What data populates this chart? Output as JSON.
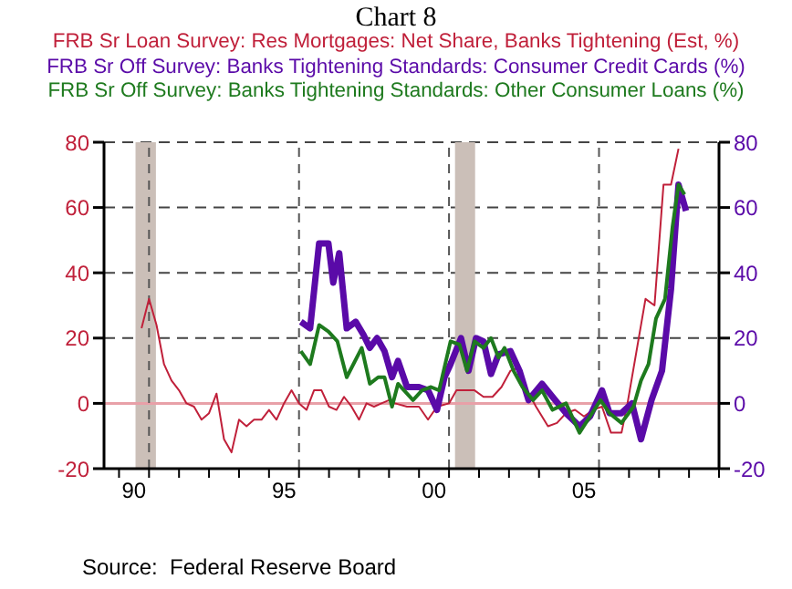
{
  "chart_data": {
    "type": "line",
    "title": "Chart 8",
    "annotations": [
      "Source:  Federal Reserve Board"
    ],
    "xlim": [
      1989,
      2009.5
    ],
    "xticks": [
      {
        "value": 1989.5,
        "label": null
      },
      {
        "value": 1990,
        "label": "90"
      },
      {
        "value": 1990.5,
        "label": null
      },
      {
        "value": 1991.5,
        "label": null
      },
      {
        "value": 1992.5,
        "label": null
      },
      {
        "value": 1993.5,
        "label": null
      },
      {
        "value": 1994.5,
        "label": null
      },
      {
        "value": 1995,
        "label": "95"
      },
      {
        "value": 1995.5,
        "label": null
      },
      {
        "value": 1996.5,
        "label": null
      },
      {
        "value": 1997.5,
        "label": null
      },
      {
        "value": 1998.5,
        "label": null
      },
      {
        "value": 1999.5,
        "label": null
      },
      {
        "value": 2000,
        "label": "00"
      },
      {
        "value": 2000.5,
        "label": null
      },
      {
        "value": 2001.5,
        "label": null
      },
      {
        "value": 2002.5,
        "label": null
      },
      {
        "value": 2003.5,
        "label": null
      },
      {
        "value": 2004.5,
        "label": null
      },
      {
        "value": 2005,
        "label": "05"
      },
      {
        "value": 2005.5,
        "label": null
      },
      {
        "value": 2006.5,
        "label": null
      },
      {
        "value": 2007.5,
        "label": null
      },
      {
        "value": 2008.5,
        "label": null
      },
      {
        "value": 2009.5,
        "label": null
      }
    ],
    "ylim": [
      -20,
      80
    ],
    "yticks": [
      -20,
      0,
      20,
      40,
      60,
      80
    ],
    "y2lim": [
      -20,
      80
    ],
    "y2ticks": [
      -20,
      0,
      20,
      40,
      60,
      80
    ],
    "grid": "y",
    "legend": "top",
    "marker": "none",
    "ref_lines": [
      {
        "axis": "y",
        "value": 0,
        "label": null,
        "color": "#e8a0a8",
        "line_style": "solid"
      },
      {
        "axis": "x",
        "value": 1990.5,
        "label": null,
        "color": "#555555",
        "line_style": "dashed"
      },
      {
        "axis": "x",
        "value": 1995.5,
        "label": null,
        "color": "#555555",
        "line_style": "dashed"
      },
      {
        "axis": "x",
        "value": 2000.5,
        "label": null,
        "color": "#555555",
        "line_style": "dashed"
      },
      {
        "axis": "x",
        "value": 2005.5,
        "label": null,
        "color": "#555555",
        "line_style": "dashed"
      }
    ],
    "bands": [
      {
        "axis": "x",
        "from": 1990.05,
        "to": 1990.73,
        "label": null,
        "color": "#cbbfb8"
      },
      {
        "axis": "x",
        "from": 2000.7,
        "to": 2001.37,
        "label": null,
        "color": "#cbbfb8"
      }
    ],
    "series": [
      {
        "name": "FRB Sr Loan Survey: Res Mortgages: Net Share, Banks Tightening (Est, %)",
        "color": "#c0203a",
        "x": [
          1990.25,
          1990.5,
          1990.75,
          1991,
          1991.25,
          1991.5,
          1991.75,
          1992,
          1992.25,
          1992.5,
          1992.75,
          1993,
          1993.25,
          1993.5,
          1993.75,
          1994,
          1994.25,
          1994.5,
          1994.75,
          1995,
          1995.25,
          1995.5,
          1995.75,
          1996,
          1996.25,
          1996.5,
          1996.75,
          1997,
          1997.25,
          1997.5,
          1997.75,
          1998,
          1998.25,
          1998.5,
          1998.7,
          1999.1,
          1999.5,
          1999.8,
          2000.1,
          2000.5,
          2000.75,
          2001.05,
          2001.35,
          2001.65,
          2001.95,
          2002.25,
          2002.55,
          2002.85,
          2003.1,
          2003.4,
          2003.8,
          2004.1,
          2004.4,
          2004.7,
          2005,
          2005.3,
          2005.6,
          2005.9,
          2006.25,
          2006.45,
          2006.75,
          2007.05,
          2007.35,
          2007.65,
          2007.9,
          2008.15
        ],
        "values": [
          23,
          32,
          24,
          12,
          7,
          4,
          0,
          -1,
          -5,
          -3,
          3,
          -11,
          -15,
          -5,
          -7,
          -5,
          -5,
          -2,
          -5,
          0,
          4,
          0,
          -2,
          4,
          4,
          -1,
          -2,
          2,
          -1,
          -5,
          0,
          -1,
          0,
          1,
          0,
          -1,
          -1,
          -5,
          -1,
          0,
          4,
          4,
          4,
          2,
          2,
          5,
          10,
          11,
          4,
          -1,
          -7,
          -6,
          -3,
          -2,
          -4,
          -2,
          -1,
          -9,
          -9,
          0,
          16,
          32,
          30,
          67,
          67,
          78
        ]
      },
      {
        "name": "FRB Sr Off Survey: Banks Tightening Standards: Consumer Credit Cards (%)",
        "color": "#5a0aa8",
        "axis": "y2",
        "x": [
          1995.56,
          1995.87,
          1996.17,
          1996.48,
          1996.64,
          1996.84,
          1997.09,
          1997.39,
          1997.65,
          1997.86,
          1998.1,
          1998.35,
          1998.6,
          1998.8,
          1999.1,
          1999.5,
          1999.8,
          2000.1,
          2000.35,
          2000.55,
          2000.9,
          2001.15,
          2001.4,
          2001.65,
          2001.9,
          2002.15,
          2002.55,
          2002.85,
          2003.15,
          2003.6,
          2003.95,
          2004.4,
          2004.85,
          2005.2,
          2005.6,
          2005.85,
          2006.25,
          2006.6,
          2006.9,
          2007.25,
          2007.6,
          2007.9,
          2008.15,
          2008.4
        ],
        "values": [
          25,
          23,
          49,
          49,
          37,
          46,
          23,
          25,
          21,
          17,
          20,
          16,
          8,
          13,
          5,
          5,
          4,
          -2,
          8,
          12,
          20,
          10,
          20,
          19,
          9,
          15,
          16,
          10,
          1,
          6,
          2,
          -3,
          -7,
          -4,
          4,
          -3,
          -3,
          0,
          -11,
          1,
          10,
          35,
          67,
          59
        ]
      },
      {
        "name": "FRB Sr Off Survey: Banks Tightening Standards: Other Consumer Loans (%)",
        "color": "#1e7a1e",
        "axis": "y2",
        "x": [
          1995.56,
          1995.87,
          1996.17,
          1996.48,
          1996.78,
          1997.09,
          1997.59,
          1997.86,
          1998.14,
          1998.35,
          1998.6,
          1998.8,
          1999.3,
          1999.6,
          1999.9,
          2000.17,
          2000.55,
          2000.85,
          2001.1,
          2001.35,
          2001.65,
          2001.9,
          2002.15,
          2002.35,
          2002.65,
          2002.95,
          2003.3,
          2003.6,
          2003.95,
          2004.4,
          2004.85,
          2005.2,
          2005.55,
          2005.85,
          2006.25,
          2006.65,
          2006.9,
          2007.15,
          2007.4,
          2007.7,
          2007.95,
          2008.15,
          2008.35
        ],
        "values": [
          16,
          12,
          24,
          22,
          19,
          8,
          17,
          6,
          8,
          8,
          -1,
          6,
          1,
          4,
          5,
          4,
          19,
          18,
          10,
          19,
          17,
          20,
          14,
          17,
          10,
          5,
          1,
          4,
          -2,
          0,
          -9,
          -4,
          1,
          -3,
          -6,
          -1,
          7,
          12,
          26,
          32,
          54,
          67,
          64
        ]
      }
    ]
  }
}
